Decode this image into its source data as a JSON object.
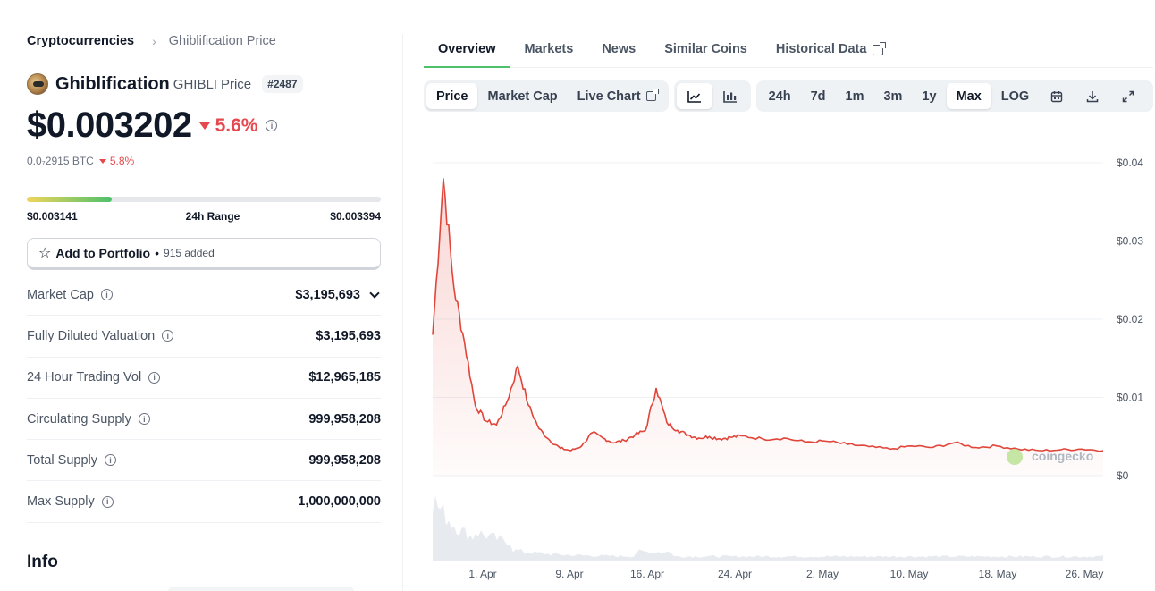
{
  "breadcrumb": {
    "root": "Cryptocurrencies",
    "separator": "›",
    "current": "Ghiblification Price"
  },
  "coin": {
    "name": "Ghiblification",
    "symbol": "GHIBLI",
    "price_label": "Price",
    "rank": "#2487",
    "price": "$0.003202",
    "change_24h": "5.6%",
    "change_direction": "down",
    "btc_price": "0.0₇2915 BTC",
    "btc_change": "5.8%"
  },
  "range": {
    "low": "$0.003141",
    "label": "24h Range",
    "high": "$0.003394",
    "position_fraction": 0.24
  },
  "portfolio": {
    "label": "Add to Portfolio",
    "dot": "•",
    "added": "915 added",
    "icon": "star-icon"
  },
  "stats": [
    {
      "label": "Market Cap",
      "value": "$3,195,693",
      "has_dropdown": true
    },
    {
      "label": "Fully Diluted Valuation",
      "value": "$3,195,693"
    },
    {
      "label": "24 Hour Trading Vol",
      "value": "$12,965,185"
    },
    {
      "label": "Circulating Supply",
      "value": "999,958,208"
    },
    {
      "label": "Total Supply",
      "value": "999,958,208"
    },
    {
      "label": "Max Supply",
      "value": "1,000,000,000"
    }
  ],
  "info_heading": "Info",
  "tabs": [
    "Overview",
    "Markets",
    "News",
    "Similar Coins",
    "Historical Data"
  ],
  "active_tab": "Overview",
  "toolbar": {
    "data_types": [
      "Price",
      "Market Cap",
      "Live Chart"
    ],
    "active_data_type": "Price",
    "chart_kinds": [
      "line-chart-icon",
      "candlestick-icon"
    ],
    "ranges": [
      "24h",
      "7d",
      "1m",
      "3m",
      "1y",
      "Max",
      "LOG"
    ],
    "active_range": "Max",
    "tools": [
      "calendar-icon",
      "download-icon",
      "fullscreen-icon"
    ]
  },
  "colors": {
    "accent_green": "#4cc16a",
    "price_red": "#e5484d",
    "line_red": "#e0453a"
  },
  "chart_data": {
    "type": "line",
    "series": [
      {
        "x": [
          "Mar 26",
          "Mar 27",
          "Mar 28",
          "Mar 29",
          "Mar 30",
          "Mar 31",
          "Apr 1",
          "Apr 2",
          "Apr 3",
          "Apr 4",
          "Apr 5",
          "Apr 6",
          "Apr 7",
          "Apr 8",
          "Apr 9",
          "Apr 10",
          "Apr 11",
          "Apr 12",
          "Apr 13",
          "Apr 14",
          "Apr 15",
          "Apr 16",
          "Apr 17",
          "Apr 18",
          "Apr 19",
          "Apr 20",
          "Apr 21",
          "Apr 22",
          "Apr 23",
          "Apr 24",
          "Apr 26",
          "Apr 28",
          "Apr 30",
          "May 2",
          "May 4",
          "May 6",
          "May 8",
          "May 10",
          "May 12",
          "May 14",
          "May 16",
          "May 18",
          "May 20",
          "May 22",
          "May 24",
          "May 26",
          "May 27"
        ],
        "values": [
          0.018,
          0.038,
          0.024,
          0.017,
          0.009,
          0.007,
          0.0065,
          0.0095,
          0.014,
          0.009,
          0.006,
          0.0045,
          0.0035,
          0.0032,
          0.0038,
          0.0055,
          0.0048,
          0.0042,
          0.0045,
          0.0052,
          0.0058,
          0.0112,
          0.0068,
          0.0058,
          0.0052,
          0.0048,
          0.005,
          0.0047,
          0.0049,
          0.0051,
          0.0047,
          0.0048,
          0.0043,
          0.0044,
          0.004,
          0.0037,
          0.0034,
          0.0038,
          0.0036,
          0.0042,
          0.0036,
          0.0038,
          0.0034,
          0.0032,
          0.0033,
          0.0034,
          0.0032
        ]
      }
    ],
    "volume_note": "volume histogram shown below price, unlabeled",
    "yticks": [
      "$0.04",
      "$0.03",
      "$0.02",
      "$0.01",
      "$0"
    ],
    "xticks": [
      "1. Apr",
      "9. Apr",
      "16. Apr",
      "24. Apr",
      "2. May",
      "10. May",
      "18. May",
      "26. May"
    ],
    "ylim": [
      0,
      0.04
    ],
    "grid": true,
    "watermark": "coingecko"
  }
}
